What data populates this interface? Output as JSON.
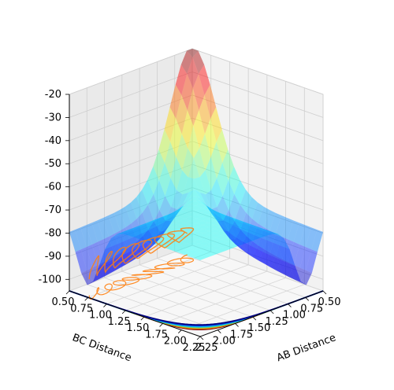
{
  "chart_data": {
    "type": "surface-3d",
    "x_axis": {
      "label": "AB Distance",
      "ticks": [
        "0.50",
        "0.75",
        "1.00",
        "1.25",
        "1.50",
        "1.75",
        "2.00",
        "2.25"
      ]
    },
    "y_axis": {
      "label": "BC Distance",
      "ticks": [
        "0.50",
        "0.75",
        "1.00",
        "1.25",
        "1.50",
        "1.75",
        "2.00",
        "2.25"
      ]
    },
    "z_axis": {
      "ticks": [
        "-20",
        "-30",
        "-40",
        "-50",
        "-60",
        "-70",
        "-80",
        "-90",
        "-100"
      ],
      "zlim": [
        -105,
        -20
      ]
    },
    "surface": {
      "colormap": "jet",
      "alpha": 0.45,
      "approx_values": [
        {
          "ab": 0.5,
          "bc": 2.25,
          "energy": -72
        },
        {
          "ab": 2.25,
          "bc": 0.5,
          "energy": -72
        },
        {
          "ab": 0.5,
          "bc": 0.5,
          "energy": -20
        },
        {
          "ab": 2.25,
          "bc": 2.25,
          "energy": -73
        },
        {
          "ab": 0.75,
          "bc": 2.25,
          "energy": -101
        },
        {
          "ab": 2.25,
          "bc": 0.75,
          "energy": -101
        }
      ]
    },
    "floor_contours": {
      "levels_colors": [
        "#800000",
        "#ff8c00",
        "#66cc66",
        "#00bfff",
        "#0033cc",
        "#000080"
      ]
    },
    "trajectory": {
      "color": "#ff7f0e",
      "description_visible": false
    },
    "grid": true
  }
}
